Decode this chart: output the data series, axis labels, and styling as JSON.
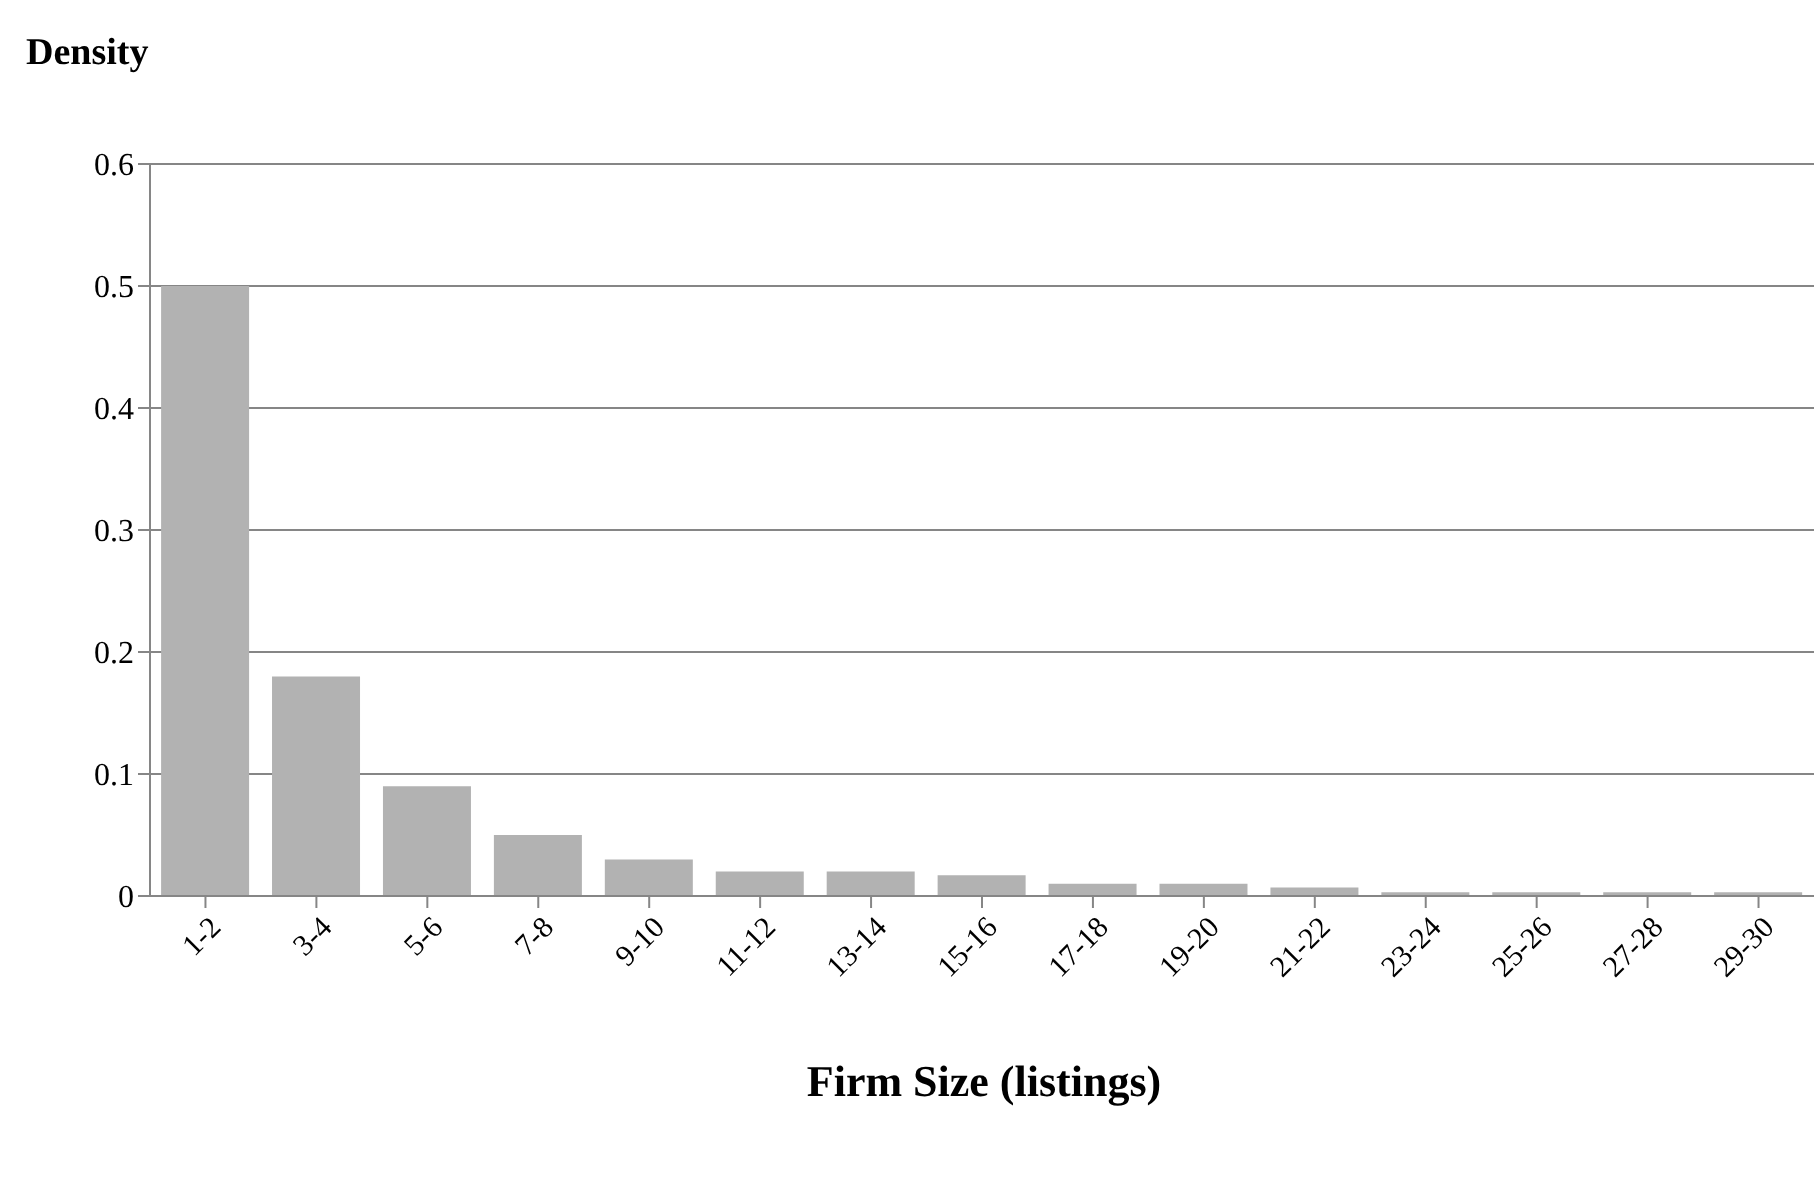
{
  "chart_data": {
    "type": "bar",
    "ylabel": "Density",
    "xlabel": "Firm Size (listings)",
    "categories": [
      "1-2",
      "3-4",
      "5-6",
      "7-8",
      "9-10",
      "11-12",
      "13-14",
      "15-16",
      "17-18",
      "19-20",
      "21-22",
      "23-24",
      "25-26",
      "27-28",
      "29-30"
    ],
    "values": [
      0.5,
      0.18,
      0.09,
      0.05,
      0.03,
      0.02,
      0.02,
      0.017,
      0.01,
      0.01,
      0.007,
      0.003,
      0.003,
      0.003,
      0.003
    ],
    "color": "#b2b2b2",
    "ylim": [
      0,
      0.6
    ],
    "yticks": [
      0,
      0.1,
      0.2,
      0.3,
      0.4,
      0.5,
      0.6
    ],
    "grid": "y"
  }
}
